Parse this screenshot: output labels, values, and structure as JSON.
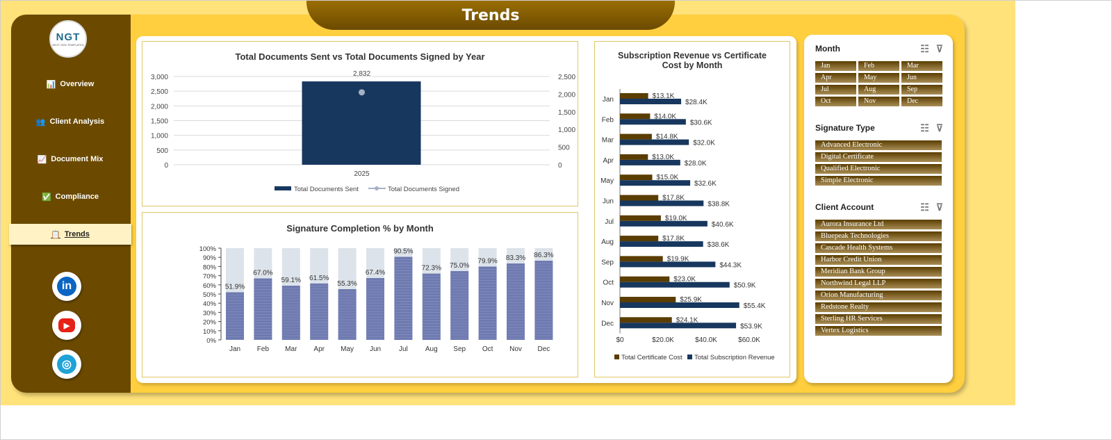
{
  "header": {
    "title": "Trends"
  },
  "logo": {
    "text": "NGT",
    "subtext": "NEXT GEN TEMPLATES"
  },
  "nav": [
    {
      "label": "Overview",
      "icon": "chart-icon"
    },
    {
      "label": "Client Analysis",
      "icon": "users-icon"
    },
    {
      "label": "Document Mix",
      "icon": "trend-icon"
    },
    {
      "label": "Compliance",
      "icon": "check-icon"
    },
    {
      "label": "Trends",
      "icon": "clipboard-icon",
      "active": true
    }
  ],
  "social": [
    {
      "name": "linkedin",
      "glyph": "in",
      "color": "#0a66c2"
    },
    {
      "name": "youtube",
      "glyph": "▶",
      "color": "#e62117"
    },
    {
      "name": "website",
      "glyph": "◎",
      "color": "#1fa3d6"
    }
  ],
  "colors": {
    "navy": "#17375e",
    "gray": "#a6b1c5",
    "brown": "#5a3d00",
    "lavender": "#6e7ab0",
    "track": "#dde3ea"
  },
  "charts": {
    "docs": {
      "title": "Total Documents Sent vs Total Documents Signed by Year",
      "data_label": "2,832",
      "left_ticks": [
        "3,000",
        "2,500",
        "2,000",
        "1,500",
        "1,000",
        "500",
        "0"
      ],
      "right_ticks": [
        "2,500",
        "2,000",
        "1,500",
        "1,000",
        "500",
        "0"
      ],
      "legend": [
        "Total Documents Sent",
        "Total Documents Signed"
      ]
    },
    "completion": {
      "title": "Signature Completion % by Month",
      "y_ticks": [
        "100%",
        "90%",
        "80%",
        "70%",
        "60%",
        "50%",
        "40%",
        "30%",
        "20%",
        "10%",
        "0%"
      ]
    },
    "revenue": {
      "title_line1": "Subscription Revenue vs Certificate",
      "title_line2": "Cost by Month",
      "x_ticks": [
        "$0",
        "$20.0K",
        "$40.0K",
        "$60.0K"
      ],
      "legend": [
        "Total Certificate Cost",
        "Total Subscription Revenue"
      ]
    }
  },
  "chart_data": [
    {
      "type": "bar",
      "title": "Total Documents Sent vs Total Documents Signed by Year",
      "categories": [
        "2025"
      ],
      "series": [
        {
          "name": "Total Documents Sent",
          "values": [
            2832
          ],
          "axis": "left"
        },
        {
          "name": "Total Documents Signed",
          "values": [
            2050
          ],
          "axis": "right",
          "style": "line"
        }
      ],
      "ylim": [
        0,
        3000
      ],
      "y2lim": [
        0,
        2500
      ],
      "grid": true,
      "legend": "bottom"
    },
    {
      "type": "bar",
      "title": "Signature Completion % by Month",
      "categories": [
        "Jan",
        "Feb",
        "Mar",
        "Apr",
        "May",
        "Jun",
        "Jul",
        "Aug",
        "Sep",
        "Oct",
        "Nov",
        "Dec"
      ],
      "values": [
        51.9,
        67.0,
        59.1,
        61.5,
        55.3,
        67.4,
        90.5,
        72.3,
        75.0,
        79.9,
        83.3,
        86.3
      ],
      "labels": [
        "51.9%",
        "67.0%",
        "59.1%",
        "61.5%",
        "55.3%",
        "67.4%",
        "90.5%",
        "72.3%",
        "75.0%",
        "79.9%",
        "83.3%",
        "86.3%"
      ],
      "ylim": [
        0,
        100
      ]
    },
    {
      "type": "bar",
      "orientation": "horizontal",
      "title": "Subscription Revenue vs Certificate Cost by Month",
      "categories": [
        "Jan",
        "Feb",
        "Mar",
        "Apr",
        "May",
        "Jun",
        "Jul",
        "Aug",
        "Sep",
        "Oct",
        "Nov",
        "Dec"
      ],
      "series": [
        {
          "name": "Total Certificate Cost",
          "values": [
            13.1,
            14.0,
            14.8,
            13.0,
            15.0,
            17.8,
            19.0,
            17.8,
            19.9,
            23.0,
            25.9,
            24.1
          ],
          "labels": [
            "$13.1K",
            "$14.0K",
            "$14.8K",
            "$13.0K",
            "$15.0K",
            "$17.8K",
            "$19.0K",
            "$17.8K",
            "$19.9K",
            "$23.0K",
            "$25.9K",
            "$24.1K"
          ]
        },
        {
          "name": "Total Subscription Revenue",
          "values": [
            28.4,
            30.6,
            32.0,
            28.0,
            32.6,
            38.8,
            40.6,
            38.6,
            44.3,
            50.9,
            55.4,
            53.9
          ],
          "labels": [
            "$28.4K",
            "$30.6K",
            "$32.0K",
            "$28.0K",
            "$32.6K",
            "$38.8K",
            "$40.6K",
            "$38.6K",
            "$44.3K",
            "$50.9K",
            "$55.4K",
            "$53.9K"
          ]
        }
      ],
      "xlim": [
        0,
        60
      ],
      "legend": "bottom"
    }
  ],
  "slicers": {
    "month": {
      "title": "Month",
      "items": [
        "Jan",
        "Feb",
        "Mar",
        "Apr",
        "May",
        "Jun",
        "Jul",
        "Aug",
        "Sep",
        "Oct",
        "Nov",
        "Dec"
      ]
    },
    "signature": {
      "title": "Signature Type",
      "items": [
        "Advanced Electronic",
        "Digital Certificate",
        "Qualified Electronic",
        "Simple Electronic"
      ]
    },
    "client": {
      "title": "Client Account",
      "items": [
        "Aurora Insurance Ltd",
        "Bluepeak Technologies",
        "Cascade Health Systems",
        "Harbor Credit Union",
        "Meridian Bank Group",
        "Northwind Legal LLP",
        "Orion Manufacturing",
        "Redstone Realty",
        "Sterling HR Services",
        "Vertex Logistics"
      ]
    }
  }
}
